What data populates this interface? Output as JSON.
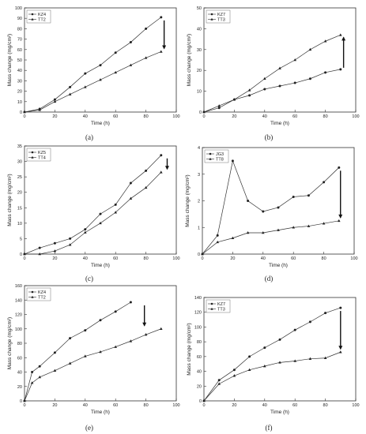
{
  "chart_data": [
    {
      "type": "line",
      "caption": "(a)",
      "xlabel": "Time (h)",
      "ylabel": "Mass change (mg/cm²)",
      "xlim": [
        0,
        100
      ],
      "ylim": [
        0,
        100
      ],
      "xticks": [
        0,
        20,
        40,
        60,
        80,
        100
      ],
      "yticks": [
        0,
        10,
        20,
        30,
        40,
        50,
        60,
        70,
        80,
        90,
        100
      ],
      "legend_position": "top-left",
      "arrow": "down",
      "series": [
        {
          "name": "KZ4",
          "marker": "circle",
          "x": [
            0,
            10,
            20,
            30,
            40,
            50,
            60,
            70,
            80,
            90
          ],
          "values": [
            0,
            3,
            12,
            24,
            37,
            45,
            57,
            67,
            80,
            91
          ]
        },
        {
          "name": "TT2",
          "marker": "triangle",
          "x": [
            0,
            10,
            20,
            30,
            40,
            50,
            60,
            70,
            80,
            90
          ],
          "values": [
            0,
            2,
            10,
            17,
            24,
            31,
            38,
            45,
            52,
            58
          ]
        }
      ]
    },
    {
      "type": "line",
      "caption": "(b)",
      "xlabel": "Time (h)",
      "ylabel": "Mass change (mg/cm²)",
      "xlim": [
        0,
        100
      ],
      "ylim": [
        0,
        50
      ],
      "xticks": [
        0,
        20,
        40,
        60,
        80,
        100
      ],
      "yticks": [
        0,
        10,
        20,
        30,
        40,
        50
      ],
      "legend_position": "top-left",
      "arrow": "up",
      "series": [
        {
          "name": "KZ7",
          "marker": "circle",
          "x": [
            0,
            10,
            20,
            30,
            40,
            50,
            60,
            70,
            80,
            90
          ],
          "values": [
            0,
            2,
            6,
            8,
            11,
            12.5,
            14,
            16,
            19,
            20.5
          ]
        },
        {
          "name": "TT3",
          "marker": "triangle",
          "x": [
            0,
            10,
            20,
            30,
            40,
            50,
            60,
            70,
            80,
            90
          ],
          "values": [
            0,
            3,
            6,
            10.5,
            16,
            21,
            25,
            30,
            34,
            37
          ]
        }
      ]
    },
    {
      "type": "line",
      "caption": "(c)",
      "xlabel": "Time (h)",
      "ylabel": "Mass change (mg/cm²)",
      "xlim": [
        0,
        100
      ],
      "ylim": [
        0,
        35
      ],
      "xticks": [
        0,
        20,
        40,
        60,
        80,
        100
      ],
      "yticks": [
        0,
        5,
        10,
        15,
        20,
        25,
        30,
        35
      ],
      "legend_position": "top-left",
      "arrow": "down",
      "series": [
        {
          "name": "KZ5",
          "marker": "circle",
          "x": [
            0,
            10,
            20,
            30,
            40,
            50,
            60,
            70,
            80,
            90
          ],
          "values": [
            0,
            2,
            3.5,
            5,
            8,
            13,
            16,
            23,
            27,
            32
          ]
        },
        {
          "name": "TT4",
          "marker": "triangle",
          "x": [
            0,
            10,
            20,
            30,
            40,
            50,
            60,
            70,
            80,
            90
          ],
          "values": [
            0,
            0,
            1,
            3,
            7,
            10,
            13.5,
            18,
            21.5,
            26.5
          ]
        }
      ]
    },
    {
      "type": "line",
      "caption": "(d)",
      "xlabel": "Time (h)",
      "ylabel": "Mass change (mg/cm²)",
      "xlim": [
        0,
        100
      ],
      "ylim": [
        0,
        4
      ],
      "xticks": [
        0,
        20,
        40,
        60,
        80,
        100
      ],
      "yticks": [
        0,
        1,
        2,
        3,
        4
      ],
      "legend_position": "top-left",
      "arrow": "down",
      "series": [
        {
          "name": "JG3",
          "marker": "circle",
          "x": [
            0,
            10,
            20,
            30,
            40,
            50,
            60,
            70,
            80,
            90
          ],
          "values": [
            0,
            0.7,
            3.5,
            2.0,
            1.6,
            1.75,
            2.15,
            2.2,
            2.7,
            3.25
          ]
        },
        {
          "name": "TT8",
          "marker": "triangle",
          "x": [
            0,
            10,
            20,
            30,
            40,
            50,
            60,
            70,
            80,
            90
          ],
          "values": [
            0,
            0.45,
            0.6,
            0.8,
            0.8,
            0.9,
            1.0,
            1.05,
            1.15,
            1.25
          ]
        }
      ]
    },
    {
      "type": "line",
      "caption": "(e)",
      "xlabel": "Time (h)",
      "ylabel": "Mass change (mg/cm²)",
      "xlim": [
        0,
        100
      ],
      "ylim": [
        0,
        160
      ],
      "xticks": [
        0,
        20,
        40,
        60,
        80,
        100
      ],
      "yticks": [
        0,
        20,
        40,
        60,
        80,
        100,
        120,
        140,
        160
      ],
      "legend_position": "top-left",
      "arrow": "down",
      "series": [
        {
          "name": "KZ4",
          "marker": "circle",
          "x": [
            0,
            5,
            10,
            20,
            30,
            40,
            50,
            60,
            70
          ],
          "values": [
            0,
            40,
            48,
            67,
            87,
            98,
            112,
            124,
            137
          ]
        },
        {
          "name": "TT2",
          "marker": "triangle",
          "x": [
            0,
            5,
            10,
            20,
            30,
            40,
            50,
            60,
            70,
            80,
            90
          ],
          "values": [
            0,
            25,
            33,
            42,
            52,
            62,
            68,
            75,
            83,
            92,
            100
          ]
        }
      ]
    },
    {
      "type": "line",
      "caption": "(f)",
      "xlabel": "Time (h)",
      "ylabel": "Mass change (mg/cm²)",
      "xlim": [
        0,
        100
      ],
      "ylim": [
        0,
        140
      ],
      "xticks": [
        0,
        20,
        40,
        60,
        80,
        100
      ],
      "yticks": [
        0,
        20,
        40,
        60,
        80,
        100,
        120,
        140
      ],
      "legend_position": "top-left",
      "arrow": "down",
      "series": [
        {
          "name": "KZ7",
          "marker": "circle",
          "x": [
            0,
            10,
            20,
            30,
            40,
            50,
            60,
            70,
            80,
            90
          ],
          "values": [
            0,
            28,
            42,
            60,
            72,
            83,
            96,
            107,
            119,
            126
          ]
        },
        {
          "name": "TT3",
          "marker": "triangle",
          "x": [
            0,
            10,
            20,
            30,
            40,
            50,
            60,
            70,
            80,
            90
          ],
          "values": [
            0,
            23,
            34,
            42,
            47,
            52,
            54,
            57,
            58,
            66
          ]
        }
      ]
    }
  ]
}
